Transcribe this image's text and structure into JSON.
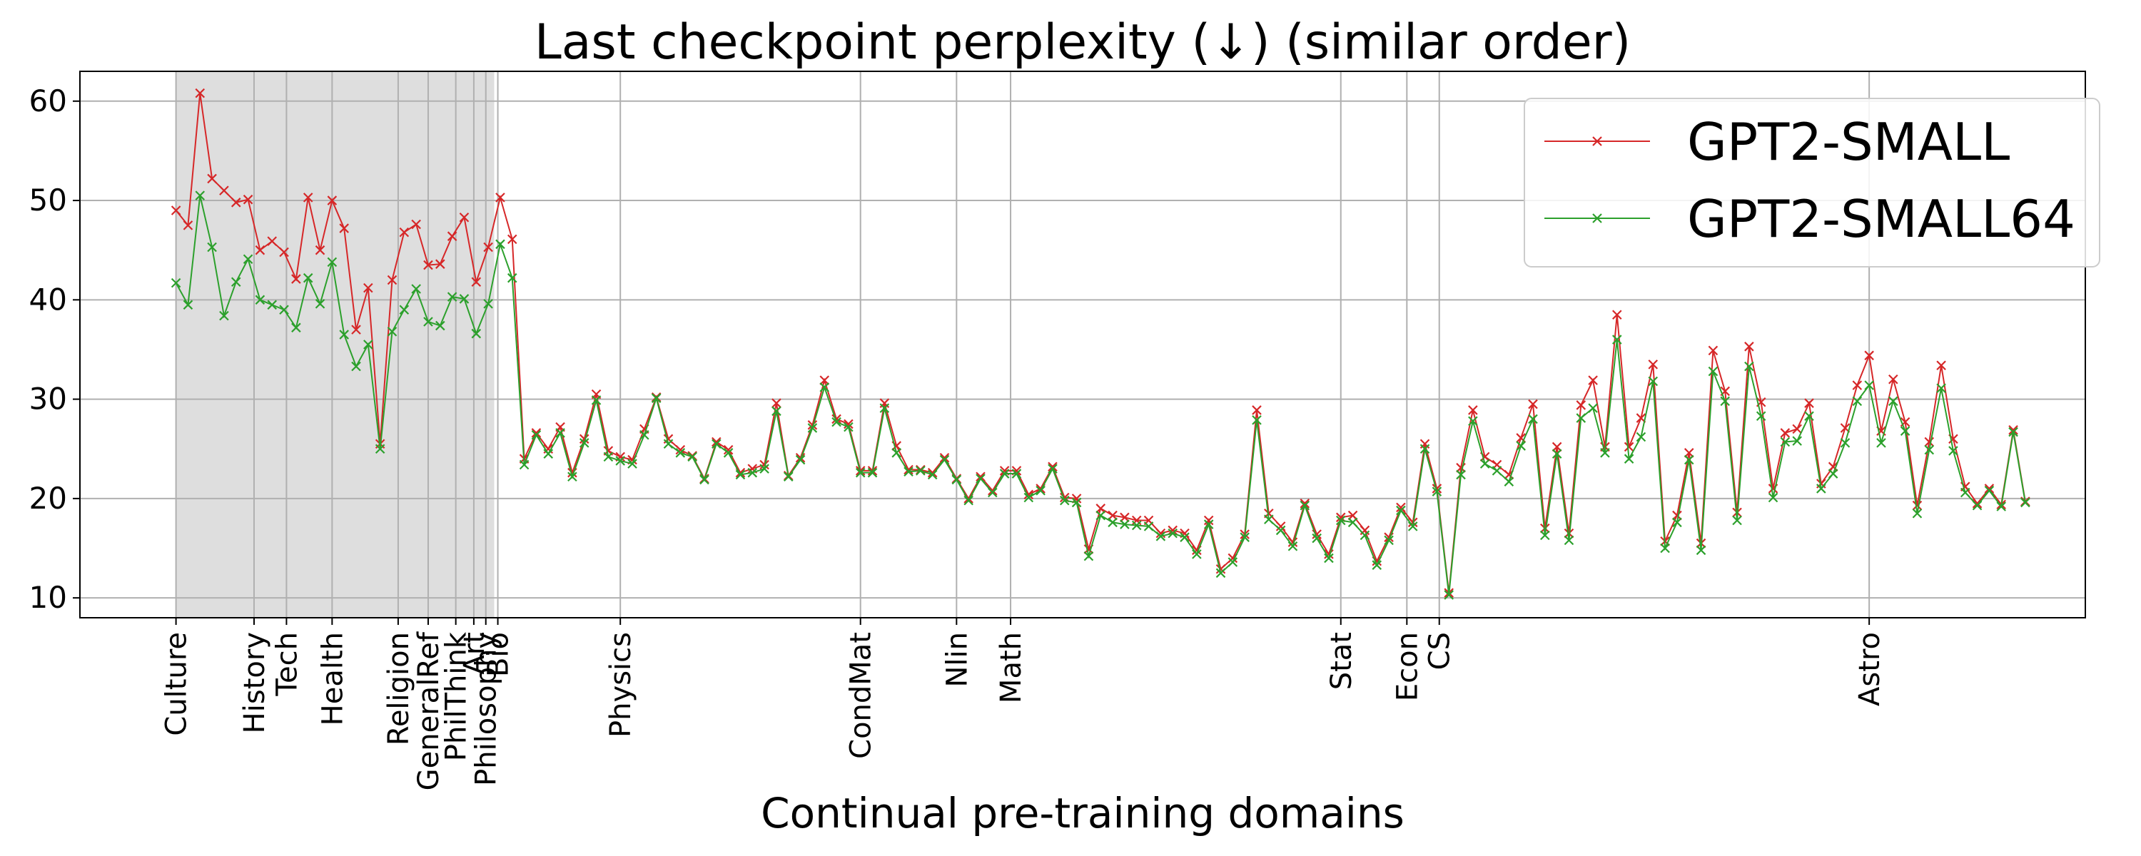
{
  "chart_data": {
    "type": "line",
    "title": "Last checkpoint perplexity (↓) (similar order)",
    "xlabel": "Continual pre-training domains",
    "ylabel": "",
    "ylim": [
      8,
      63
    ],
    "xlim": [
      -8,
      159
    ],
    "yticks": [
      10,
      20,
      30,
      40,
      50,
      60
    ],
    "grid": true,
    "legend_position": "top-right",
    "shaded_region": [
      0,
      26.5
    ],
    "shaded_color": "#dedede",
    "domain_ticks": [
      {
        "x": 0,
        "label": "Culture"
      },
      {
        "x": 6.5,
        "label": "History"
      },
      {
        "x": 9.2,
        "label": "Tech"
      },
      {
        "x": 13,
        "label": "Health"
      },
      {
        "x": 18.5,
        "label": "Religion"
      },
      {
        "x": 21,
        "label": "GeneralRef"
      },
      {
        "x": 23.3,
        "label": "PhilThink"
      },
      {
        "x": 24.8,
        "label": "Art"
      },
      {
        "x": 25.8,
        "label": "Philosophy"
      },
      {
        "x": 26.8,
        "label": "Bio"
      },
      {
        "x": 37,
        "label": "Physics"
      },
      {
        "x": 57,
        "label": "CondMat"
      },
      {
        "x": 65,
        "label": "Nlin"
      },
      {
        "x": 69.5,
        "label": "Math"
      },
      {
        "x": 97,
        "label": "Stat"
      },
      {
        "x": 102.5,
        "label": "Econ"
      },
      {
        "x": 105.2,
        "label": "CS"
      },
      {
        "x": 141,
        "label": "Astro"
      }
    ],
    "series": [
      {
        "name": "GPT2-SMALL",
        "color": "#d62728",
        "values": [
          49,
          47.5,
          60.8,
          52.2,
          51,
          49.8,
          50.1,
          45,
          45.9,
          44.8,
          42.1,
          50.3,
          45,
          50,
          47.2,
          37,
          41.2,
          25.5,
          42,
          46.8,
          47.6,
          43.5,
          43.6,
          46.4,
          48.3,
          41.8,
          45.3,
          50.3,
          46.1,
          24,
          26.6,
          25,
          27.2,
          22.6,
          26,
          30.5,
          24.8,
          24.2,
          23.9,
          27,
          30.2,
          26,
          24.9,
          24.3,
          22,
          25.7,
          24.9,
          22.6,
          23,
          23.4,
          29.6,
          22.3,
          24.1,
          27.4,
          31.9,
          28,
          27.5,
          22.8,
          22.8,
          29.6,
          25.3,
          22.9,
          22.9,
          22.6,
          24.1,
          22,
          20,
          22.2,
          20.8,
          22.8,
          22.8,
          20.4,
          21,
          23.2,
          20.1,
          20,
          14.9,
          19,
          18.3,
          18.1,
          17.8,
          17.8,
          16.5,
          16.8,
          16.5,
          14.8,
          17.8,
          12.9,
          14,
          16.4,
          28.9,
          18.5,
          17.2,
          15.6,
          19.5,
          16.4,
          14.4,
          18.1,
          18.3,
          16.8,
          13.7,
          16.1,
          19.1,
          17.6,
          25.5,
          21,
          10.5,
          23.1,
          28.9,
          24.2,
          23.4,
          22.4,
          26.1,
          29.5,
          17,
          25.2,
          16.5,
          29.4,
          31.9,
          25.2,
          38.5,
          25.2,
          28.1,
          33.5,
          15.7,
          18.3,
          24.6,
          15.5,
          34.9,
          30.8,
          18.6,
          35.3,
          29.7,
          21,
          26.6,
          27,
          29.6,
          21.5,
          23.2,
          27.1,
          31.4,
          34.4,
          26.8,
          32,
          27.7,
          19.3,
          25.7,
          33.4,
          26,
          21.2,
          19.5,
          21,
          19.4,
          26.9,
          19.7
        ]
      },
      {
        "name": "GPT2-SMALL64",
        "color": "#2ca02c",
        "values": [
          41.7,
          39.5,
          50.5,
          45.3,
          38.4,
          41.8,
          44.1,
          40,
          39.5,
          39,
          37.2,
          42.2,
          39.6,
          43.8,
          36.5,
          33.3,
          35.5,
          25,
          36.8,
          39,
          41.1,
          37.8,
          37.4,
          40.3,
          40.1,
          36.6,
          39.6,
          45.6,
          42.2,
          23.4,
          26.4,
          24.5,
          26.6,
          22.2,
          25.6,
          29.9,
          24.2,
          23.8,
          23.5,
          26.4,
          30.1,
          25.5,
          24.6,
          24.2,
          21.9,
          25.5,
          24.6,
          22.4,
          22.6,
          23,
          28.8,
          22.2,
          23.9,
          27.1,
          31.2,
          27.7,
          27.2,
          22.6,
          22.6,
          29.1,
          24.6,
          22.7,
          22.8,
          22.4,
          23.9,
          21.9,
          19.8,
          22,
          20.6,
          22.5,
          22.5,
          20.1,
          20.8,
          23,
          19.8,
          19.6,
          14.2,
          18.3,
          17.6,
          17.4,
          17.3,
          17.2,
          16.2,
          16.5,
          16.1,
          14.4,
          17.4,
          12.5,
          13.6,
          16.1,
          27.9,
          17.9,
          16.8,
          15.2,
          19.3,
          16,
          14,
          17.8,
          17.6,
          16.3,
          13.3,
          15.8,
          18.8,
          17.2,
          25,
          20.7,
          10.3,
          22.4,
          27.8,
          23.5,
          22.8,
          21.7,
          25.3,
          28,
          16.3,
          24.5,
          15.8,
          28.1,
          29.1,
          24.6,
          36,
          24,
          26.2,
          31.8,
          15,
          17.6,
          23.9,
          14.8,
          32.8,
          29.8,
          17.8,
          33.3,
          28.3,
          20.1,
          25.7,
          25.8,
          28.3,
          21,
          22.5,
          25.6,
          29.8,
          31.4,
          25.6,
          29.8,
          26.8,
          18.5,
          24.9,
          31.1,
          24.8,
          20.6,
          19.3,
          20.8,
          19.2,
          26.7,
          19.6
        ]
      }
    ]
  }
}
